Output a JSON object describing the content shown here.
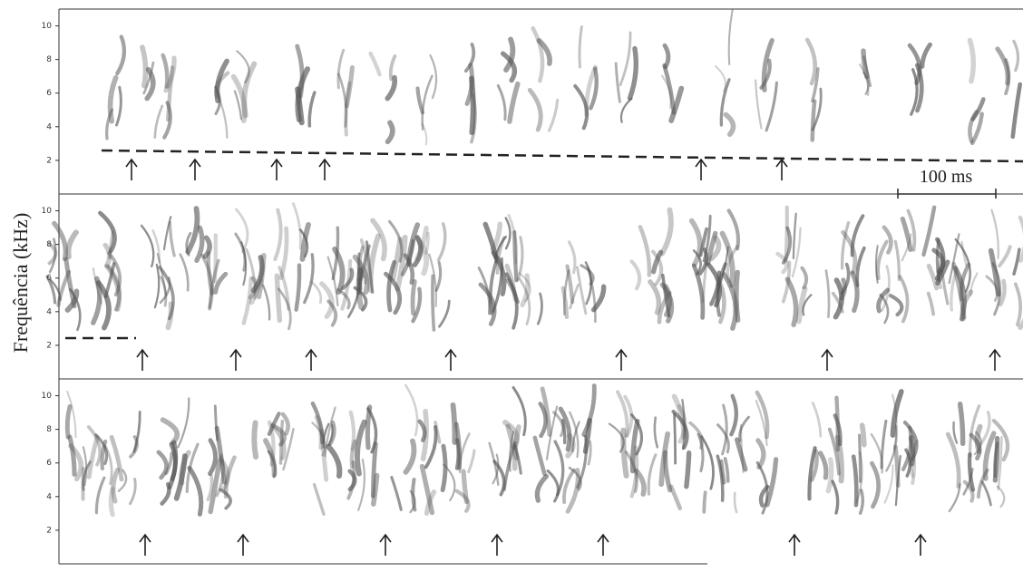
{
  "figure": {
    "y_label": "Frequência (kHz)",
    "scale_bar": "100 ms",
    "panels": [
      {
        "ylim": [
          0,
          11
        ],
        "yticks": [
          2,
          4,
          6,
          8,
          10
        ]
      },
      {
        "ylim": [
          0,
          11
        ],
        "yticks": [
          2,
          4,
          6,
          8,
          10
        ]
      },
      {
        "ylim": [
          0,
          11
        ],
        "yticks": [
          2,
          4,
          6,
          8,
          10
        ]
      }
    ]
  }
}
